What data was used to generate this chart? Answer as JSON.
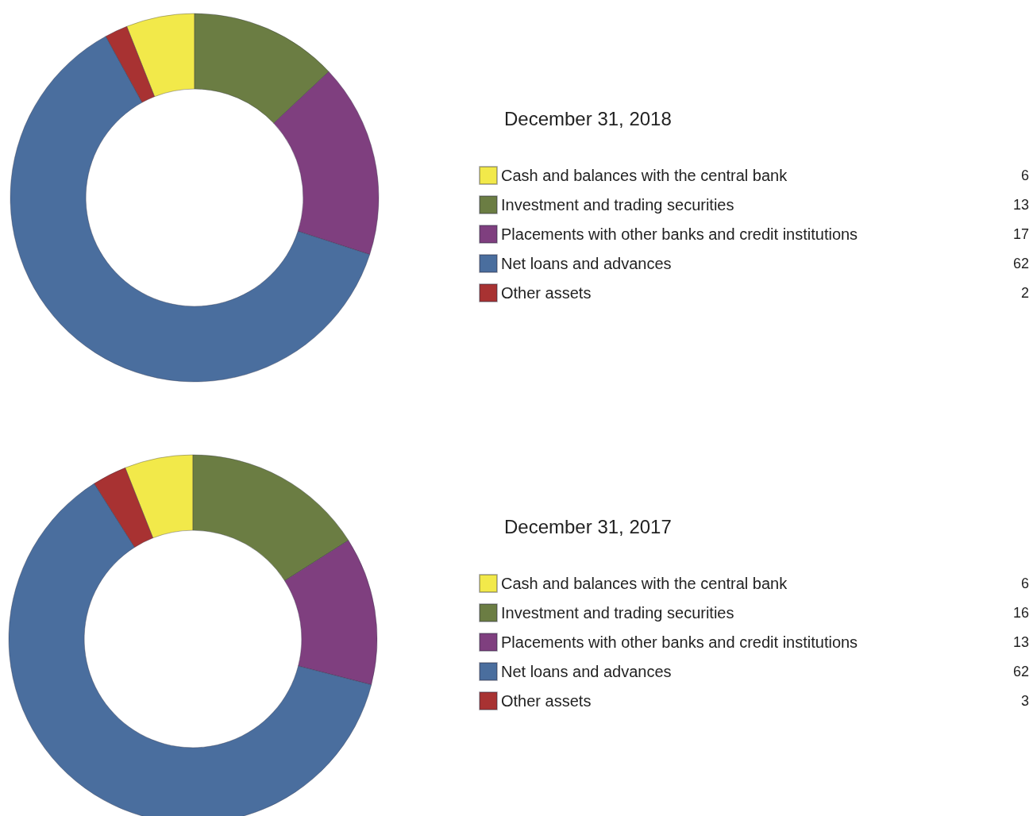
{
  "chart_data": [
    {
      "type": "donut",
      "title": "December 31, 2018",
      "categories": [
        "Cash and balances with the central bank",
        "Investment and trading securities",
        "Placements with other banks and credit institutions",
        "Net loans and advances",
        "Other assets"
      ],
      "values": [
        6,
        13,
        17,
        62,
        2
      ],
      "colors": [
        "#f2e94a",
        "#6b7d43",
        "#7f3f7f",
        "#4a6e9e",
        "#a83232"
      ],
      "data_labels": true,
      "legend": "right"
    },
    {
      "type": "donut",
      "title": "December 31, 2017",
      "categories": [
        "Cash and balances with the central bank",
        "Investment and trading securities",
        "Placements with other banks and credit institutions",
        "Net loans and advances",
        "Other assets"
      ],
      "values": [
        6,
        16,
        13,
        62,
        3
      ],
      "colors": [
        "#f2e94a",
        "#6b7d43",
        "#7f3f7f",
        "#4a6e9e",
        "#a83232"
      ],
      "data_labels": true,
      "legend": "right"
    }
  ]
}
